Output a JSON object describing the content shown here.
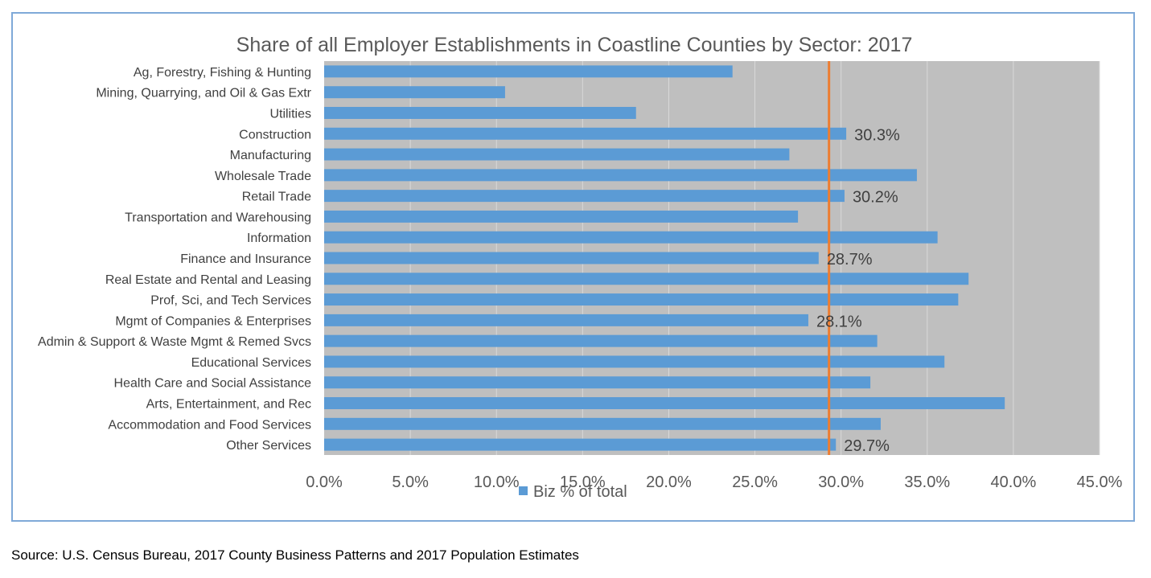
{
  "chart_data": {
    "type": "bar",
    "orientation": "horizontal",
    "title": "Share of all Employer Establishments in Coastline Counties by Sector: 2017",
    "categories": [
      "Ag, Forestry, Fishing & Hunting",
      "Mining, Quarrying, and Oil & Gas Extr",
      "Utilities",
      "Construction",
      "Manufacturing",
      "Wholesale Trade",
      "Retail Trade",
      "Transportation and Warehousing",
      "Information",
      "Finance and Insurance",
      "Real Estate and Rental and Leasing",
      "Prof, Sci, and Tech Services",
      "Mgmt of Companies & Enterprises",
      "Admin & Support & Waste Mgmt & Remed Svcs",
      "Educational Services",
      "Health Care and Social Assistance",
      "Arts, Entertainment, and Rec",
      "Accommodation and Food Services",
      "Other Services"
    ],
    "series": [
      {
        "name": "Biz % of total",
        "color": "#5b9bd5",
        "values": [
          23.7,
          10.5,
          18.1,
          30.3,
          27.0,
          34.4,
          30.2,
          27.5,
          35.6,
          28.7,
          37.4,
          36.8,
          28.1,
          32.1,
          36.0,
          31.7,
          39.5,
          32.3,
          29.7
        ]
      }
    ],
    "data_labels": [
      {
        "category": "Construction",
        "text": "30.3%"
      },
      {
        "category": "Retail Trade",
        "text": "30.2%"
      },
      {
        "category": "Finance and Insurance",
        "text": "28.7%"
      },
      {
        "category": "Mgmt of Companies & Enterprises",
        "text": "28.1%"
      },
      {
        "category": "Other Services",
        "text": "29.7%"
      }
    ],
    "reference_line": {
      "value": 29.3,
      "color": "#ed7d31"
    },
    "xlim": [
      0,
      45
    ],
    "x_ticks": [
      "0.0%",
      "5.0%",
      "10.0%",
      "15.0%",
      "20.0%",
      "25.0%",
      "30.0%",
      "35.0%",
      "40.0%",
      "45.0%"
    ],
    "x_tick_values": [
      0,
      5,
      10,
      15,
      20,
      25,
      30,
      35,
      40,
      45
    ],
    "grid": true,
    "plot_background": "#bfbfbf",
    "legend_position": "bottom"
  },
  "source_note": "Source: U.S. Census Bureau, 2017 County Business Patterns and 2017 Population Estimates"
}
